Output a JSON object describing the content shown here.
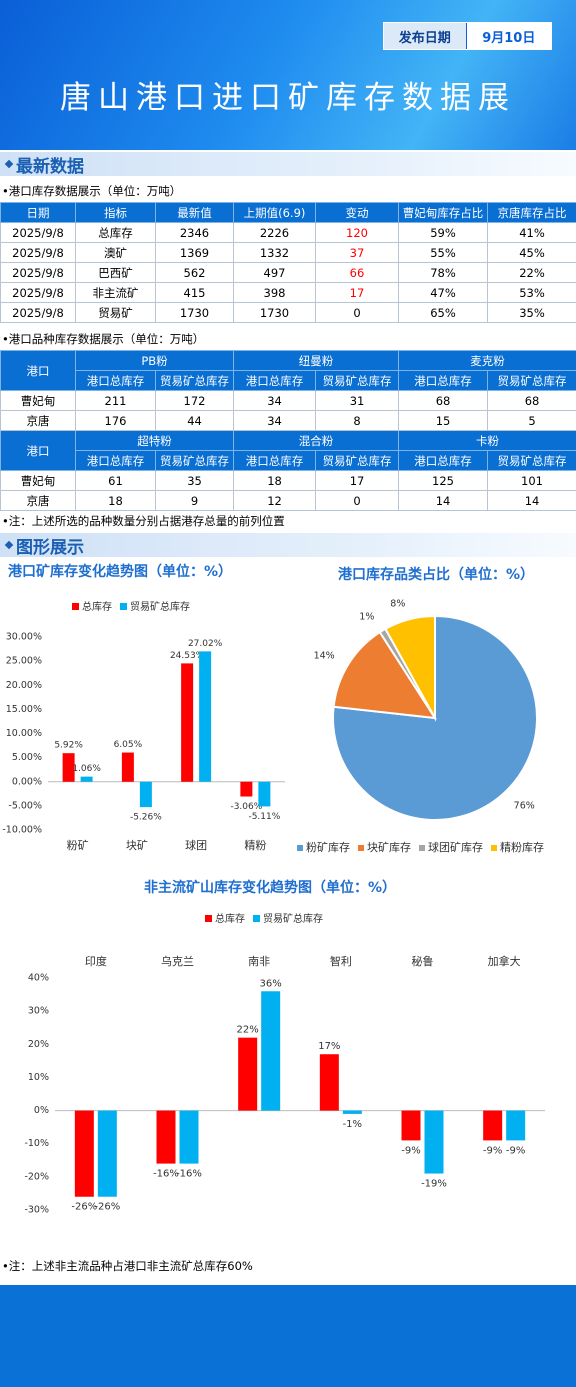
{
  "header": {
    "date_label": "发布日期",
    "date": "9月10日",
    "title": "唐山港口进口矿库存数据展"
  },
  "section_titles": [
    "最新数据",
    "图形展示"
  ],
  "inventory_table": {
    "caption": "•港口库存数据展示（单位：万吨）",
    "columns": [
      "日期",
      "指标",
      "最新值",
      "上期值(6.9)",
      "变动",
      "曹妃甸库存占比",
      "京唐库存占比"
    ],
    "rows": [
      [
        "2025/9/8",
        "总库存",
        2346,
        2226,
        120,
        "59%",
        "41%"
      ],
      [
        "2025/9/8",
        "澳矿",
        1369,
        1332,
        37,
        "55%",
        "45%"
      ],
      [
        "2025/9/8",
        "巴西矿",
        562,
        497,
        66,
        "78%",
        "22%"
      ],
      [
        "2025/9/8",
        "非主流矿",
        415,
        398,
        17,
        "47%",
        "53%"
      ],
      [
        "2025/9/8",
        "贸易矿",
        1730,
        1730,
        0,
        "65%",
        "35%"
      ]
    ],
    "positive_change_color": "#ff0000"
  },
  "variety_table": {
    "caption": "•港口品种库存数据展示（单位：万吨）",
    "port_header": "港口",
    "subcolumns": [
      "港口总库存",
      "贸易矿总库存"
    ],
    "blocks": [
      {
        "groups": [
          "PB粉",
          "纽曼粉",
          "麦克粉"
        ],
        "rows": [
          [
            "曹妃甸",
            211,
            172,
            34,
            31,
            68,
            68
          ],
          [
            "京唐",
            176,
            44,
            34,
            8,
            15,
            5
          ]
        ]
      },
      {
        "groups": [
          "超特粉",
          "混合粉",
          "卡粉"
        ],
        "rows": [
          [
            "曹妃甸",
            61,
            35,
            18,
            17,
            125,
            101
          ],
          [
            "京唐",
            18,
            9,
            12,
            0,
            14,
            14
          ]
        ]
      }
    ]
  },
  "note1": "•注：上述所选的品种数量分别占据港存总量的前列位置",
  "chart_data": [
    {
      "type": "bar",
      "title": "港口矿库存变化趋势图（单位：%）",
      "categories": [
        "粉矿",
        "块矿",
        "球团",
        "精粉"
      ],
      "series": [
        {
          "name": "总库存",
          "color": "#ff0000",
          "values": [
            5.92,
            6.05,
            24.53,
            -3.06
          ],
          "value_labels": [
            "5.92%",
            "6.05%",
            "24.53%",
            "-3.06%"
          ]
        },
        {
          "name": "贸易矿总库存",
          "color": "#00b0f0",
          "values": [
            1.06,
            -5.26,
            27.02,
            -5.11
          ],
          "value_labels": [
            "1.06%",
            "-5.26%",
            "27.02%",
            "-5.11%"
          ]
        }
      ],
      "ylim": [
        -10,
        30
      ],
      "yticks": [
        {
          "value": -10,
          "label": "-10.00%"
        },
        {
          "value": -5,
          "label": "-5.00%"
        },
        {
          "value": 0,
          "label": "0.00%"
        },
        {
          "value": 5,
          "label": "5.00%"
        },
        {
          "value": 10,
          "label": "10.00%"
        },
        {
          "value": 15,
          "label": "15.00%"
        },
        {
          "value": 20,
          "label": "20.00%"
        },
        {
          "value": 25,
          "label": "25.00%"
        },
        {
          "value": 30,
          "label": "30.00%"
        }
      ],
      "grid": false,
      "legend": "top",
      "category_axis": "bottom"
    },
    {
      "type": "pie",
      "title": "港口库存品类占比（单位：%）",
      "categories": [
        "粉矿库存",
        "块矿库存",
        "球团矿库存",
        "精粉库存"
      ],
      "values": [
        76,
        14,
        1,
        8
      ],
      "value_labels": [
        "76%",
        "14%",
        "1%",
        "8%"
      ],
      "colors": [
        "#5b9bd5",
        "#ed7d31",
        "#a5a5a5",
        "#ffc000"
      ],
      "legend": "bottom"
    },
    {
      "type": "bar",
      "title": "非主流矿山库存变化趋势图（单位：%）",
      "categories": [
        "印度",
        "乌克兰",
        "南非",
        "智利",
        "秘鲁",
        "加拿大"
      ],
      "series": [
        {
          "name": "总库存",
          "color": "#ff0000",
          "values": [
            -26,
            -16,
            22,
            17,
            -9,
            -9
          ],
          "value_labels": [
            "-26%",
            "-16%",
            "22%",
            "17%",
            "-9%",
            "-9%"
          ]
        },
        {
          "name": "贸易矿总库存",
          "color": "#00b0f0",
          "values": [
            -26,
            -16,
            36,
            -1,
            -19,
            -9
          ],
          "value_labels": [
            "-26%",
            "-16%",
            "36%",
            "-1%",
            "-19%",
            "-9%"
          ]
        }
      ],
      "ylim": [
        -30,
        40
      ],
      "yticks": [
        {
          "value": -30,
          "label": "-30%"
        },
        {
          "value": -20,
          "label": "-20%"
        },
        {
          "value": -10,
          "label": "-10%"
        },
        {
          "value": 0,
          "label": "0%"
        },
        {
          "value": 10,
          "label": "10%"
        },
        {
          "value": 20,
          "label": "20%"
        },
        {
          "value": 30,
          "label": "30%"
        },
        {
          "value": 40,
          "label": "40%"
        }
      ],
      "grid": false,
      "legend": "top",
      "category_axis": "top"
    }
  ],
  "note2": "•注：上述非主流品种占港口非主流矿总库存60%"
}
